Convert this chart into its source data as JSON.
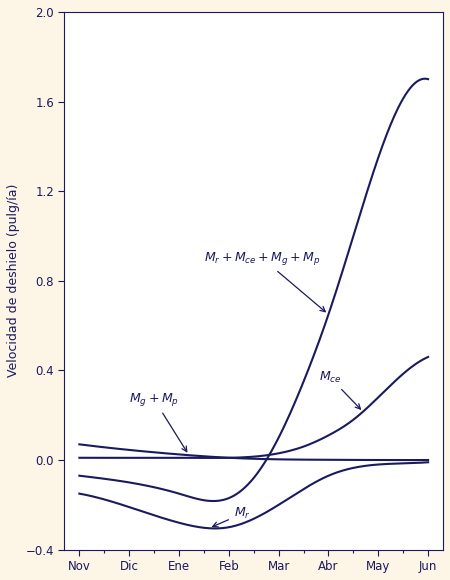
{
  "background_color": "#fdf5e6",
  "plot_bg_color": "#ffffff",
  "line_color": "#1a1a5e",
  "months": [
    "Nov",
    "Dic",
    "Ene",
    "Feb",
    "Mar",
    "Abr",
    "May",
    "Jun"
  ],
  "ylabel": "Velocidad de deshielo (pulg/ía)",
  "ylim": [
    -0.4,
    2.0
  ],
  "yticks": [
    -0.4,
    0.0,
    0.4,
    0.8,
    1.2,
    1.6,
    2.0
  ],
  "axis_fontsize": 9,
  "tick_fontsize": 8.5,
  "annotation_fontsize": 9,
  "Mr_x": [
    0,
    1,
    2,
    3,
    4,
    5,
    6,
    7
  ],
  "Mr_y": [
    -0.15,
    -0.21,
    -0.28,
    -0.3,
    -0.2,
    -0.07,
    -0.02,
    -0.01
  ],
  "MgMp_x": [
    0,
    1,
    2,
    3,
    4,
    5,
    6,
    7
  ],
  "MgMp_y": [
    0.07,
    0.045,
    0.025,
    0.01,
    0.003,
    0.001,
    0.0,
    0.0
  ],
  "Mce_x": [
    0,
    1,
    2,
    3,
    3.5,
    4,
    4.5,
    5,
    5.5,
    6,
    7
  ],
  "Mce_y": [
    0.01,
    0.01,
    0.01,
    0.01,
    0.015,
    0.03,
    0.06,
    0.11,
    0.18,
    0.28,
    0.46
  ],
  "Total_x": [
    0,
    1,
    2,
    3,
    3.5,
    4,
    4.5,
    5,
    5.5,
    6,
    7
  ],
  "Total_y": [
    -0.07,
    -0.1,
    -0.15,
    -0.17,
    -0.08,
    0.1,
    0.35,
    0.65,
    1.0,
    1.35,
    1.7
  ]
}
